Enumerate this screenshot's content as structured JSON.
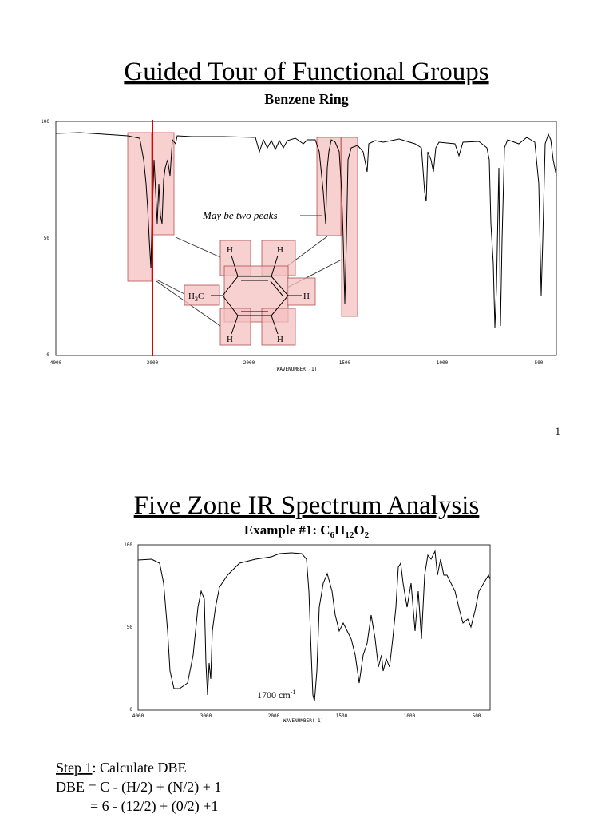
{
  "slides": [
    {
      "title": "Guided Tour of Functional Groups",
      "subtitle": "Benzene Ring",
      "spectrum": {
        "yticks": [
          "100",
          "50",
          "0"
        ],
        "xticks": [
          "4000",
          "3000",
          "2000",
          "1500",
          "1000",
          "500"
        ],
        "xlabel": "WAVENUMBER(-1)"
      },
      "annotation": "May be two peaks",
      "molecule": {
        "h": [
          "H",
          "H",
          "H",
          "H",
          "H"
        ],
        "methyl": [
          "H",
          "3",
          "C"
        ]
      },
      "page_number": "1"
    },
    {
      "title": "Five Zone IR Spectrum Analysis",
      "subtitle": [
        "Example #1: C",
        "6",
        "H",
        "12",
        "O",
        "2"
      ],
      "spectrum": {
        "yticks": [
          "100",
          "50",
          "0"
        ],
        "xticks": [
          "4000",
          "3000",
          "2000",
          "1500",
          "1000",
          "500"
        ],
        "xlabel": "WAVENUMBER(-1)"
      },
      "annotation": [
        "1700 cm",
        "-1"
      ],
      "steps": [
        "Step 1",
        ": Calculate DBE",
        "DBE = C - (H/2) + (N/2) + 1",
        "= 6 - (12/2) + (0/2) +1"
      ]
    }
  ]
}
